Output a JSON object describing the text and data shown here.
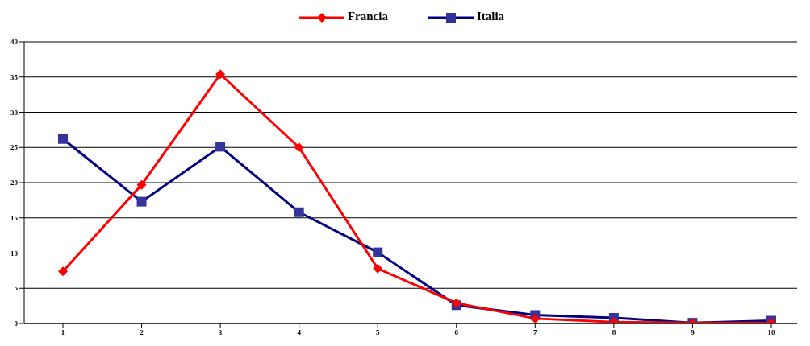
{
  "chart_data": {
    "type": "line",
    "categories": [
      "1",
      "2",
      "3",
      "4",
      "5",
      "6",
      "7",
      "8",
      "9",
      "10"
    ],
    "series": [
      {
        "name": "Francia",
        "color": "#ff0000",
        "marker": "diamond",
        "values": [
          7.4,
          19.7,
          35.4,
          25.0,
          7.8,
          2.9,
          0.7,
          0.2,
          0.1,
          0.1
        ]
      },
      {
        "name": "Italia",
        "color": "#000080",
        "marker": "square",
        "values": [
          26.2,
          17.3,
          25.1,
          15.8,
          10.1,
          2.6,
          1.2,
          0.8,
          0.1,
          0.4
        ]
      }
    ],
    "ylim": [
      0,
      40
    ],
    "yticks": [
      0,
      5,
      10,
      15,
      20,
      25,
      30,
      35,
      40
    ],
    "grid": "y",
    "legend": "top"
  }
}
